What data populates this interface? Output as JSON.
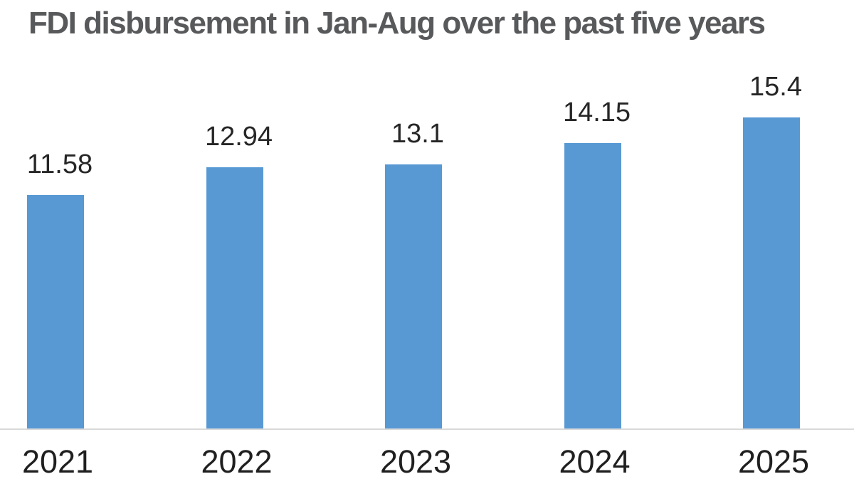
{
  "title": "FDI disbursement in Jan-Aug over the past five years",
  "colors": {
    "background": "#FFFFFF",
    "bar": "#5899D4",
    "title": "#58595B",
    "data_label": "#262626",
    "axis_label": "#1F1F1F",
    "axis_line": "#D9D9D9"
  },
  "chart_data": {
    "type": "bar",
    "title": "FDI disbursement in Jan-Aug over the past five years",
    "categories": [
      "2021",
      "2022",
      "2023",
      "2024",
      "2025"
    ],
    "values": [
      11.58,
      12.94,
      13.1,
      14.15,
      15.4
    ],
    "data_labels": [
      "11.58",
      "12.94",
      "13.1",
      "14.15",
      "15.4"
    ],
    "xlabel": "",
    "ylabel": "",
    "ylim": [
      0,
      16
    ],
    "grid": false,
    "legend": false,
    "data_labels_position": "above-bars",
    "baseline_axis": "x"
  }
}
